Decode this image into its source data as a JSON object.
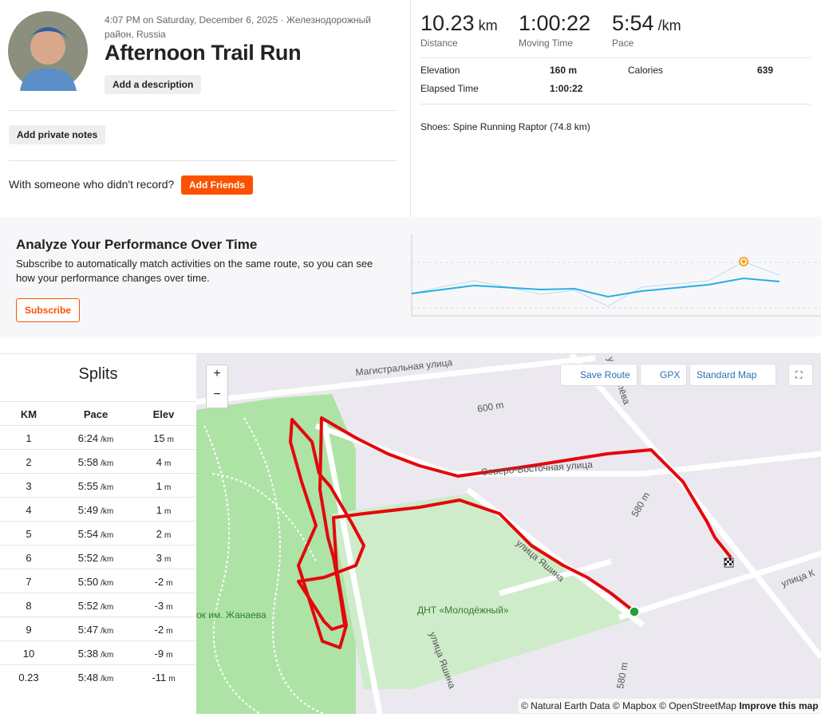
{
  "header": {
    "datetime": "4:07 PM on Saturday, December 6, 2025 · Железнодорожный район, Russia",
    "title": "Afternoon Trail Run",
    "add_description": "Add a description",
    "add_private_notes": "Add private notes",
    "with_someone": "With someone who didn't record?",
    "add_friends": "Add Friends"
  },
  "stats": {
    "primary": [
      {
        "value": "10.23",
        "unit": "km",
        "label": "Distance"
      },
      {
        "value": "1:00:22",
        "label": "Moving Time"
      },
      {
        "value": "5:54",
        "unit": "/km",
        "label": "Pace"
      }
    ],
    "secondary": [
      {
        "label": "Elevation",
        "value": "160 m"
      },
      {
        "label": "Calories",
        "value": "639"
      },
      {
        "label": "Elapsed Time",
        "value": "1:00:22"
      }
    ],
    "shoes": "Shoes: Spine Running Raptor (74.8 km)"
  },
  "analyze": {
    "title": "Analyze Your Performance Over Time",
    "text": "Subscribe to automatically match activities on the same route, so you can see how your performance changes over time.",
    "button": "Subscribe"
  },
  "splits": {
    "title": "Splits",
    "headers": [
      "KM",
      "Pace",
      "Elev"
    ],
    "rows": [
      {
        "km": "1",
        "pace": "6:24",
        "pace_unit": "/km",
        "elev": "15",
        "elev_unit": "m"
      },
      {
        "km": "2",
        "pace": "5:58",
        "pace_unit": "/km",
        "elev": "4",
        "elev_unit": "m"
      },
      {
        "km": "3",
        "pace": "5:55",
        "pace_unit": "/km",
        "elev": "1",
        "elev_unit": "m"
      },
      {
        "km": "4",
        "pace": "5:49",
        "pace_unit": "/km",
        "elev": "1",
        "elev_unit": "m"
      },
      {
        "km": "5",
        "pace": "5:54",
        "pace_unit": "/km",
        "elev": "2",
        "elev_unit": "m"
      },
      {
        "km": "6",
        "pace": "5:52",
        "pace_unit": "/km",
        "elev": "3",
        "elev_unit": "m"
      },
      {
        "km": "7",
        "pace": "5:50",
        "pace_unit": "/km",
        "elev": "-2",
        "elev_unit": "m"
      },
      {
        "km": "8",
        "pace": "5:52",
        "pace_unit": "/km",
        "elev": "-3",
        "elev_unit": "m"
      },
      {
        "km": "9",
        "pace": "5:47",
        "pace_unit": "/km",
        "elev": "-2",
        "elev_unit": "m"
      },
      {
        "km": "10",
        "pace": "5:38",
        "pace_unit": "/km",
        "elev": "-9",
        "elev_unit": "m"
      },
      {
        "km": "0.23",
        "pace": "5:48",
        "pace_unit": "/km",
        "elev": "-11",
        "elev_unit": "m"
      }
    ]
  },
  "map": {
    "zoom_in": "+",
    "zoom_out": "−",
    "save_route": "Save Route",
    "gpx": "GPX",
    "map_style": "Standard Map",
    "labels": [
      "Магистральная улица",
      "600 m",
      "Северо-Восточная улица",
      "580 m",
      "улица Яшина",
      "ДНТ «Молодёжный»",
      "ок им. Жанаева",
      "улица Яшина",
      "улица К",
      "у Королёва",
      "580 m"
    ],
    "attribution": "© Natural Earth Data © Mapbox © OpenStreetMap",
    "improve": "Improve this map"
  }
}
